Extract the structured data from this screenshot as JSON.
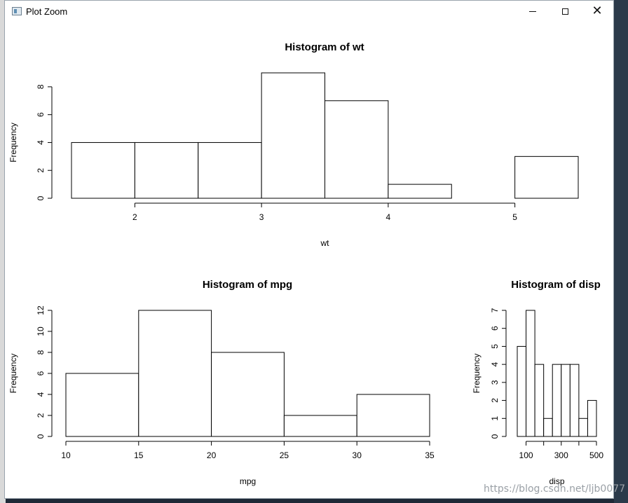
{
  "window": {
    "title": "Plot Zoom"
  },
  "watermark": "https://blog.csdn.net/ljb0077",
  "chart_data": [
    {
      "type": "bar",
      "title": "Histogram of wt",
      "xlabel": "wt",
      "ylabel": "Frequency",
      "bin_edges": [
        1.5,
        2,
        2.5,
        3,
        3.5,
        4,
        4.5,
        5,
        5.5
      ],
      "values": [
        4,
        4,
        4,
        9,
        7,
        1,
        0,
        3
      ],
      "x_ticks": [
        2,
        3,
        4,
        5
      ],
      "y_ticks": [
        0,
        2,
        4,
        6,
        8
      ],
      "ylim": [
        0,
        9
      ],
      "grid": false
    },
    {
      "type": "bar",
      "title": "Histogram of mpg",
      "xlabel": "mpg",
      "ylabel": "Frequency",
      "bin_edges": [
        10,
        15,
        20,
        25,
        30,
        35
      ],
      "values": [
        6,
        12,
        8,
        2,
        4
      ],
      "x_ticks": [
        10,
        15,
        20,
        25,
        30,
        35
      ],
      "y_ticks": [
        0,
        2,
        4,
        6,
        8,
        10,
        12
      ],
      "ylim": [
        0,
        12
      ],
      "grid": false
    },
    {
      "type": "bar",
      "title": "Histogram of disp",
      "xlabel": "disp",
      "ylabel": "Frequency",
      "bin_edges": [
        50,
        100,
        150,
        200,
        250,
        300,
        350,
        400,
        450,
        500
      ],
      "values": [
        5,
        7,
        4,
        1,
        4,
        4,
        4,
        1,
        2
      ],
      "x_ticks": [
        100,
        300,
        500
      ],
      "x_minor_ticks": [
        200,
        400
      ],
      "y_ticks": [
        0,
        1,
        2,
        3,
        4,
        5,
        6,
        7
      ],
      "ylim": [
        0,
        7
      ],
      "grid": false
    }
  ]
}
